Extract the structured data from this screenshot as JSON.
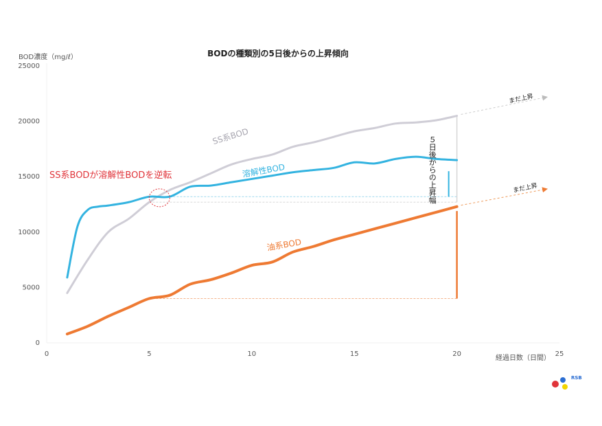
{
  "chart_data": {
    "type": "line",
    "title": "BODの種類別の5日後からの上昇傾向",
    "ylabel": "BOD濃度（mg/ℓ）",
    "xlabel": "経過日数（日間）",
    "xlim": [
      0,
      25
    ],
    "ylim": [
      0,
      25000
    ],
    "xticks": [
      0,
      5,
      10,
      15,
      20,
      25
    ],
    "yticks": [
      0,
      5000,
      10000,
      15000,
      20000,
      25000
    ],
    "grid": false,
    "colors": {
      "ss": "#cfcdd6",
      "soluble": "#33b3e0",
      "oil": "#ee7a33",
      "note": "#e0343a",
      "guide": "#555555"
    },
    "series": [
      {
        "name": "SS系BOD",
        "x": [
          1,
          2,
          3,
          4,
          5,
          6,
          7,
          8,
          9,
          10,
          11,
          12,
          13,
          14,
          15,
          16,
          17,
          18,
          19,
          20
        ],
        "values": [
          4500,
          7500,
          10000,
          11200,
          12700,
          13800,
          14500,
          15300,
          16100,
          16600,
          17000,
          17700,
          18100,
          18600,
          19100,
          19400,
          19800,
          19900,
          20100,
          20500
        ]
      },
      {
        "name": "溶解性BOD",
        "x": [
          1,
          1.5,
          2,
          2.5,
          3,
          4,
          5,
          6,
          7,
          8,
          9,
          10,
          11,
          12,
          13,
          14,
          15,
          16,
          17,
          18,
          19,
          20
        ],
        "values": [
          5900,
          10500,
          12000,
          12300,
          12400,
          12700,
          13200,
          13200,
          14100,
          14200,
          14500,
          14800,
          15100,
          15400,
          15600,
          15800,
          16300,
          16200,
          16600,
          16800,
          16600,
          16500
        ]
      },
      {
        "name": "油系BOD",
        "x": [
          1,
          2,
          3,
          4,
          5,
          6,
          7,
          8,
          9,
          10,
          11,
          12,
          13,
          14,
          15,
          16,
          17,
          18,
          19,
          20
        ],
        "values": [
          800,
          1500,
          2400,
          3200,
          4000,
          4300,
          5300,
          5700,
          6300,
          7000,
          7300,
          8200,
          8700,
          9300,
          9800,
          10300,
          10800,
          11300,
          11800,
          12300
        ]
      }
    ],
    "annotations": {
      "crossover": "SS系BODが溶解性BODを逆転",
      "rise_note": "５日後からの上昇幅",
      "still_rising": "まだ上昇"
    },
    "logo": "RSB"
  }
}
